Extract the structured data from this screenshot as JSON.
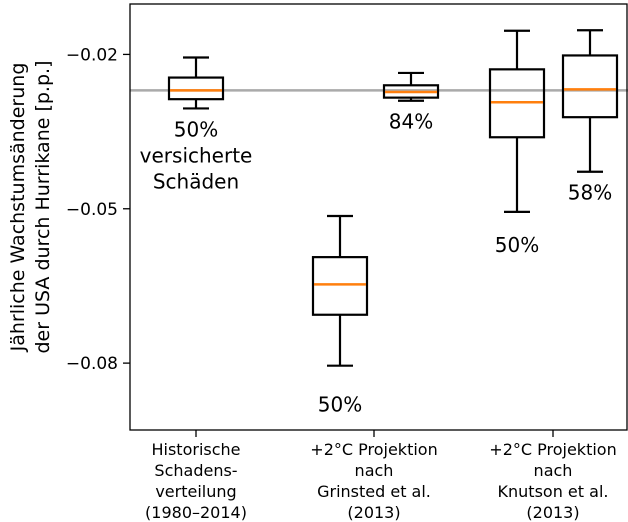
{
  "chart_data": {
    "type": "box",
    "ylabel_lines": [
      "Jährliche Wachstumsänderung",
      "der USA durch Hurrikane [p.p.]"
    ],
    "ylim": [
      -0.093,
      -0.0102
    ],
    "yticks": [
      -0.02,
      -0.05,
      -0.08
    ],
    "ytick_labels": [
      "−0.02",
      "−0.05",
      "−0.08"
    ],
    "reference_line": -0.027,
    "groups": [
      {
        "label_lines": [
          "Historische",
          "Schadens-",
          "verteilung",
          "(1980–2014)"
        ],
        "boxes": [
          {
            "whislo": -0.0305,
            "q1": -0.0287,
            "med": -0.027,
            "q3": -0.0245,
            "whishi": -0.0206,
            "label_lines": [
              "50%",
              "versicherte",
              "Schäden"
            ]
          }
        ]
      },
      {
        "label_lines": [
          "+2°C Projektion",
          "nach",
          "Grinsted et al.",
          "(2013)"
        ],
        "boxes": [
          {
            "whislo": -0.0805,
            "q1": -0.0706,
            "med": -0.0647,
            "q3": -0.0594,
            "whishi": -0.0514,
            "label_lines": [
              "50%"
            ]
          },
          {
            "whislo": -0.029,
            "q1": -0.0284,
            "med": -0.0273,
            "q3": -0.026,
            "whishi": -0.0236,
            "label_lines": [
              "84%"
            ]
          }
        ]
      },
      {
        "label_lines": [
          "+2°C Projektion",
          "nach",
          "Knutson et al.",
          "(2013)"
        ],
        "boxes": [
          {
            "whislo": -0.0506,
            "q1": -0.0361,
            "med": -0.0293,
            "q3": -0.0229,
            "whishi": -0.0154,
            "label_lines": [
              "50%"
            ]
          },
          {
            "whislo": -0.0428,
            "q1": -0.0322,
            "med": -0.0268,
            "q3": -0.0202,
            "whishi": -0.0153,
            "label_lines": [
              "58%"
            ]
          }
        ]
      }
    ],
    "colors": {
      "box": "#000000",
      "median": "#ff7f0e",
      "reference_line": "#aaaaaa"
    }
  }
}
